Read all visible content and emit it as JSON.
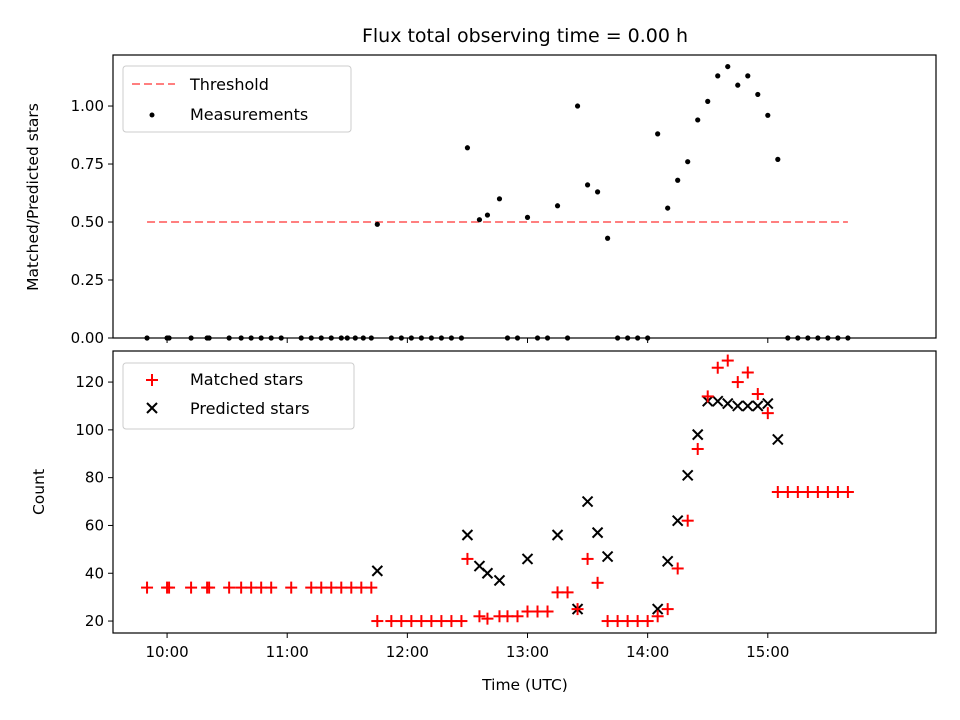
{
  "chart_data": [
    {
      "type": "scatter",
      "title": "Flux total observing time = 0.00 h",
      "xlabel": "",
      "ylabel": "Matched/Predicted stars",
      "ylim": [
        0,
        1.22
      ],
      "yticks": [
        "0.00",
        "0.25",
        "0.50",
        "0.75",
        "1.00"
      ],
      "xlim_hours": [
        9.55,
        16.4
      ],
      "legend_position": "top-left",
      "threshold": {
        "name": "Threshold",
        "y": 0.5,
        "x_range": [
          "09:50",
          "15:40"
        ],
        "color": "#ff7f7f",
        "style": "dashed"
      },
      "series": [
        {
          "name": "Measurements",
          "color": "#000000",
          "points": [
            [
              "09:50",
              0
            ],
            [
              "10:00",
              0
            ],
            [
              "10:01",
              0
            ],
            [
              "10:12",
              0
            ],
            [
              "10:20",
              0
            ],
            [
              "10:21",
              0
            ],
            [
              "10:31",
              0
            ],
            [
              "10:37",
              0
            ],
            [
              "10:42",
              0
            ],
            [
              "10:47",
              0
            ],
            [
              "10:52",
              0
            ],
            [
              "10:57",
              0
            ],
            [
              "11:07",
              0
            ],
            [
              "11:12",
              0
            ],
            [
              "11:17",
              0
            ],
            [
              "11:22",
              0
            ],
            [
              "11:27",
              0
            ],
            [
              "11:30",
              0
            ],
            [
              "11:34",
              0
            ],
            [
              "11:38",
              0
            ],
            [
              "11:42",
              0
            ],
            [
              "11:45",
              0.49
            ],
            [
              "11:52",
              0
            ],
            [
              "11:57",
              0
            ],
            [
              "12:02",
              0
            ],
            [
              "12:07",
              0
            ],
            [
              "12:12",
              0
            ],
            [
              "12:17",
              0
            ],
            [
              "12:22",
              0
            ],
            [
              "12:27",
              0
            ],
            [
              "12:30",
              0.82
            ],
            [
              "12:36",
              0.51
            ],
            [
              "12:40",
              0.53
            ],
            [
              "12:46",
              0.6
            ],
            [
              "12:50",
              0
            ],
            [
              "12:55",
              0
            ],
            [
              "13:00",
              0.52
            ],
            [
              "13:05",
              0
            ],
            [
              "13:10",
              0
            ],
            [
              "13:15",
              0.57
            ],
            [
              "13:20",
              0
            ],
            [
              "13:25",
              1.0
            ],
            [
              "13:30",
              0.66
            ],
            [
              "13:35",
              0.63
            ],
            [
              "13:40",
              0.43
            ],
            [
              "13:45",
              0
            ],
            [
              "13:50",
              0
            ],
            [
              "13:55",
              0
            ],
            [
              "14:00",
              0
            ],
            [
              "14:05",
              0.88
            ],
            [
              "14:10",
              0.56
            ],
            [
              "14:15",
              0.68
            ],
            [
              "14:20",
              0.76
            ],
            [
              "14:25",
              0.94
            ],
            [
              "14:30",
              1.02
            ],
            [
              "14:35",
              1.13
            ],
            [
              "14:40",
              1.17
            ],
            [
              "14:45",
              1.09
            ],
            [
              "14:50",
              1.13
            ],
            [
              "14:55",
              1.05
            ],
            [
              "15:00",
              0.96
            ],
            [
              "15:05",
              0.77
            ],
            [
              "15:10",
              0
            ],
            [
              "15:15",
              0
            ],
            [
              "15:20",
              0
            ],
            [
              "15:25",
              0
            ],
            [
              "15:30",
              0
            ],
            [
              "15:35",
              0
            ],
            [
              "15:40",
              0
            ]
          ]
        }
      ]
    },
    {
      "type": "scatter",
      "title": "",
      "xlabel": "Time (UTC)",
      "ylabel": "Count",
      "ylim": [
        15,
        133
      ],
      "yticks": [
        "20",
        "40",
        "60",
        "80",
        "100",
        "120"
      ],
      "xticks": [
        "10:00",
        "11:00",
        "12:00",
        "13:00",
        "14:00",
        "15:00"
      ],
      "xlim_hours": [
        9.55,
        16.4
      ],
      "legend_position": "top-left",
      "series": [
        {
          "name": "Matched stars",
          "color": "#ff0000",
          "marker": "plus",
          "points": [
            [
              "09:50",
              34
            ],
            [
              "10:00",
              34
            ],
            [
              "10:01",
              34
            ],
            [
              "10:12",
              34
            ],
            [
              "10:20",
              34
            ],
            [
              "10:21",
              34
            ],
            [
              "10:31",
              34
            ],
            [
              "10:37",
              34
            ],
            [
              "10:42",
              34
            ],
            [
              "10:47",
              34
            ],
            [
              "10:52",
              34
            ],
            [
              "11:02",
              34
            ],
            [
              "11:12",
              34
            ],
            [
              "11:17",
              34
            ],
            [
              "11:22",
              34
            ],
            [
              "11:27",
              34
            ],
            [
              "11:32",
              34
            ],
            [
              "11:37",
              34
            ],
            [
              "11:42",
              34
            ],
            [
              "11:45",
              20
            ],
            [
              "11:52",
              20
            ],
            [
              "11:57",
              20
            ],
            [
              "12:02",
              20
            ],
            [
              "12:07",
              20
            ],
            [
              "12:12",
              20
            ],
            [
              "12:17",
              20
            ],
            [
              "12:22",
              20
            ],
            [
              "12:27",
              20
            ],
            [
              "12:30",
              46
            ],
            [
              "12:36",
              22
            ],
            [
              "12:40",
              21
            ],
            [
              "12:46",
              22
            ],
            [
              "12:50",
              22
            ],
            [
              "12:55",
              22
            ],
            [
              "13:00",
              24
            ],
            [
              "13:05",
              24
            ],
            [
              "13:10",
              24
            ],
            [
              "13:15",
              32
            ],
            [
              "13:20",
              32
            ],
            [
              "13:25",
              25
            ],
            [
              "13:30",
              46
            ],
            [
              "13:35",
              36
            ],
            [
              "13:40",
              20
            ],
            [
              "13:45",
              20
            ],
            [
              "13:50",
              20
            ],
            [
              "13:55",
              20
            ],
            [
              "14:00",
              20
            ],
            [
              "14:05",
              22
            ],
            [
              "14:10",
              25
            ],
            [
              "14:15",
              42
            ],
            [
              "14:20",
              62
            ],
            [
              "14:25",
              92
            ],
            [
              "14:30",
              114
            ],
            [
              "14:35",
              126
            ],
            [
              "14:40",
              129
            ],
            [
              "14:45",
              120
            ],
            [
              "14:50",
              124
            ],
            [
              "14:55",
              115
            ],
            [
              "15:00",
              107
            ],
            [
              "15:05",
              74
            ],
            [
              "15:10",
              74
            ],
            [
              "15:15",
              74
            ],
            [
              "15:20",
              74
            ],
            [
              "15:25",
              74
            ],
            [
              "15:30",
              74
            ],
            [
              "15:35",
              74
            ],
            [
              "15:40",
              74
            ]
          ]
        },
        {
          "name": "Predicted stars",
          "color": "#000000",
          "marker": "x",
          "points": [
            [
              "11:45",
              41
            ],
            [
              "12:30",
              56
            ],
            [
              "12:36",
              43
            ],
            [
              "12:40",
              40
            ],
            [
              "12:46",
              37
            ],
            [
              "13:00",
              46
            ],
            [
              "13:15",
              56
            ],
            [
              "13:25",
              25
            ],
            [
              "13:30",
              70
            ],
            [
              "13:35",
              57
            ],
            [
              "13:40",
              47
            ],
            [
              "14:05",
              25
            ],
            [
              "14:10",
              45
            ],
            [
              "14:15",
              62
            ],
            [
              "14:20",
              81
            ],
            [
              "14:25",
              98
            ],
            [
              "14:30",
              112
            ],
            [
              "14:35",
              112
            ],
            [
              "14:40",
              111
            ],
            [
              "14:45",
              110
            ],
            [
              "14:50",
              110
            ],
            [
              "14:55",
              110
            ],
            [
              "15:00",
              111
            ],
            [
              "15:05",
              96
            ]
          ]
        }
      ]
    }
  ]
}
